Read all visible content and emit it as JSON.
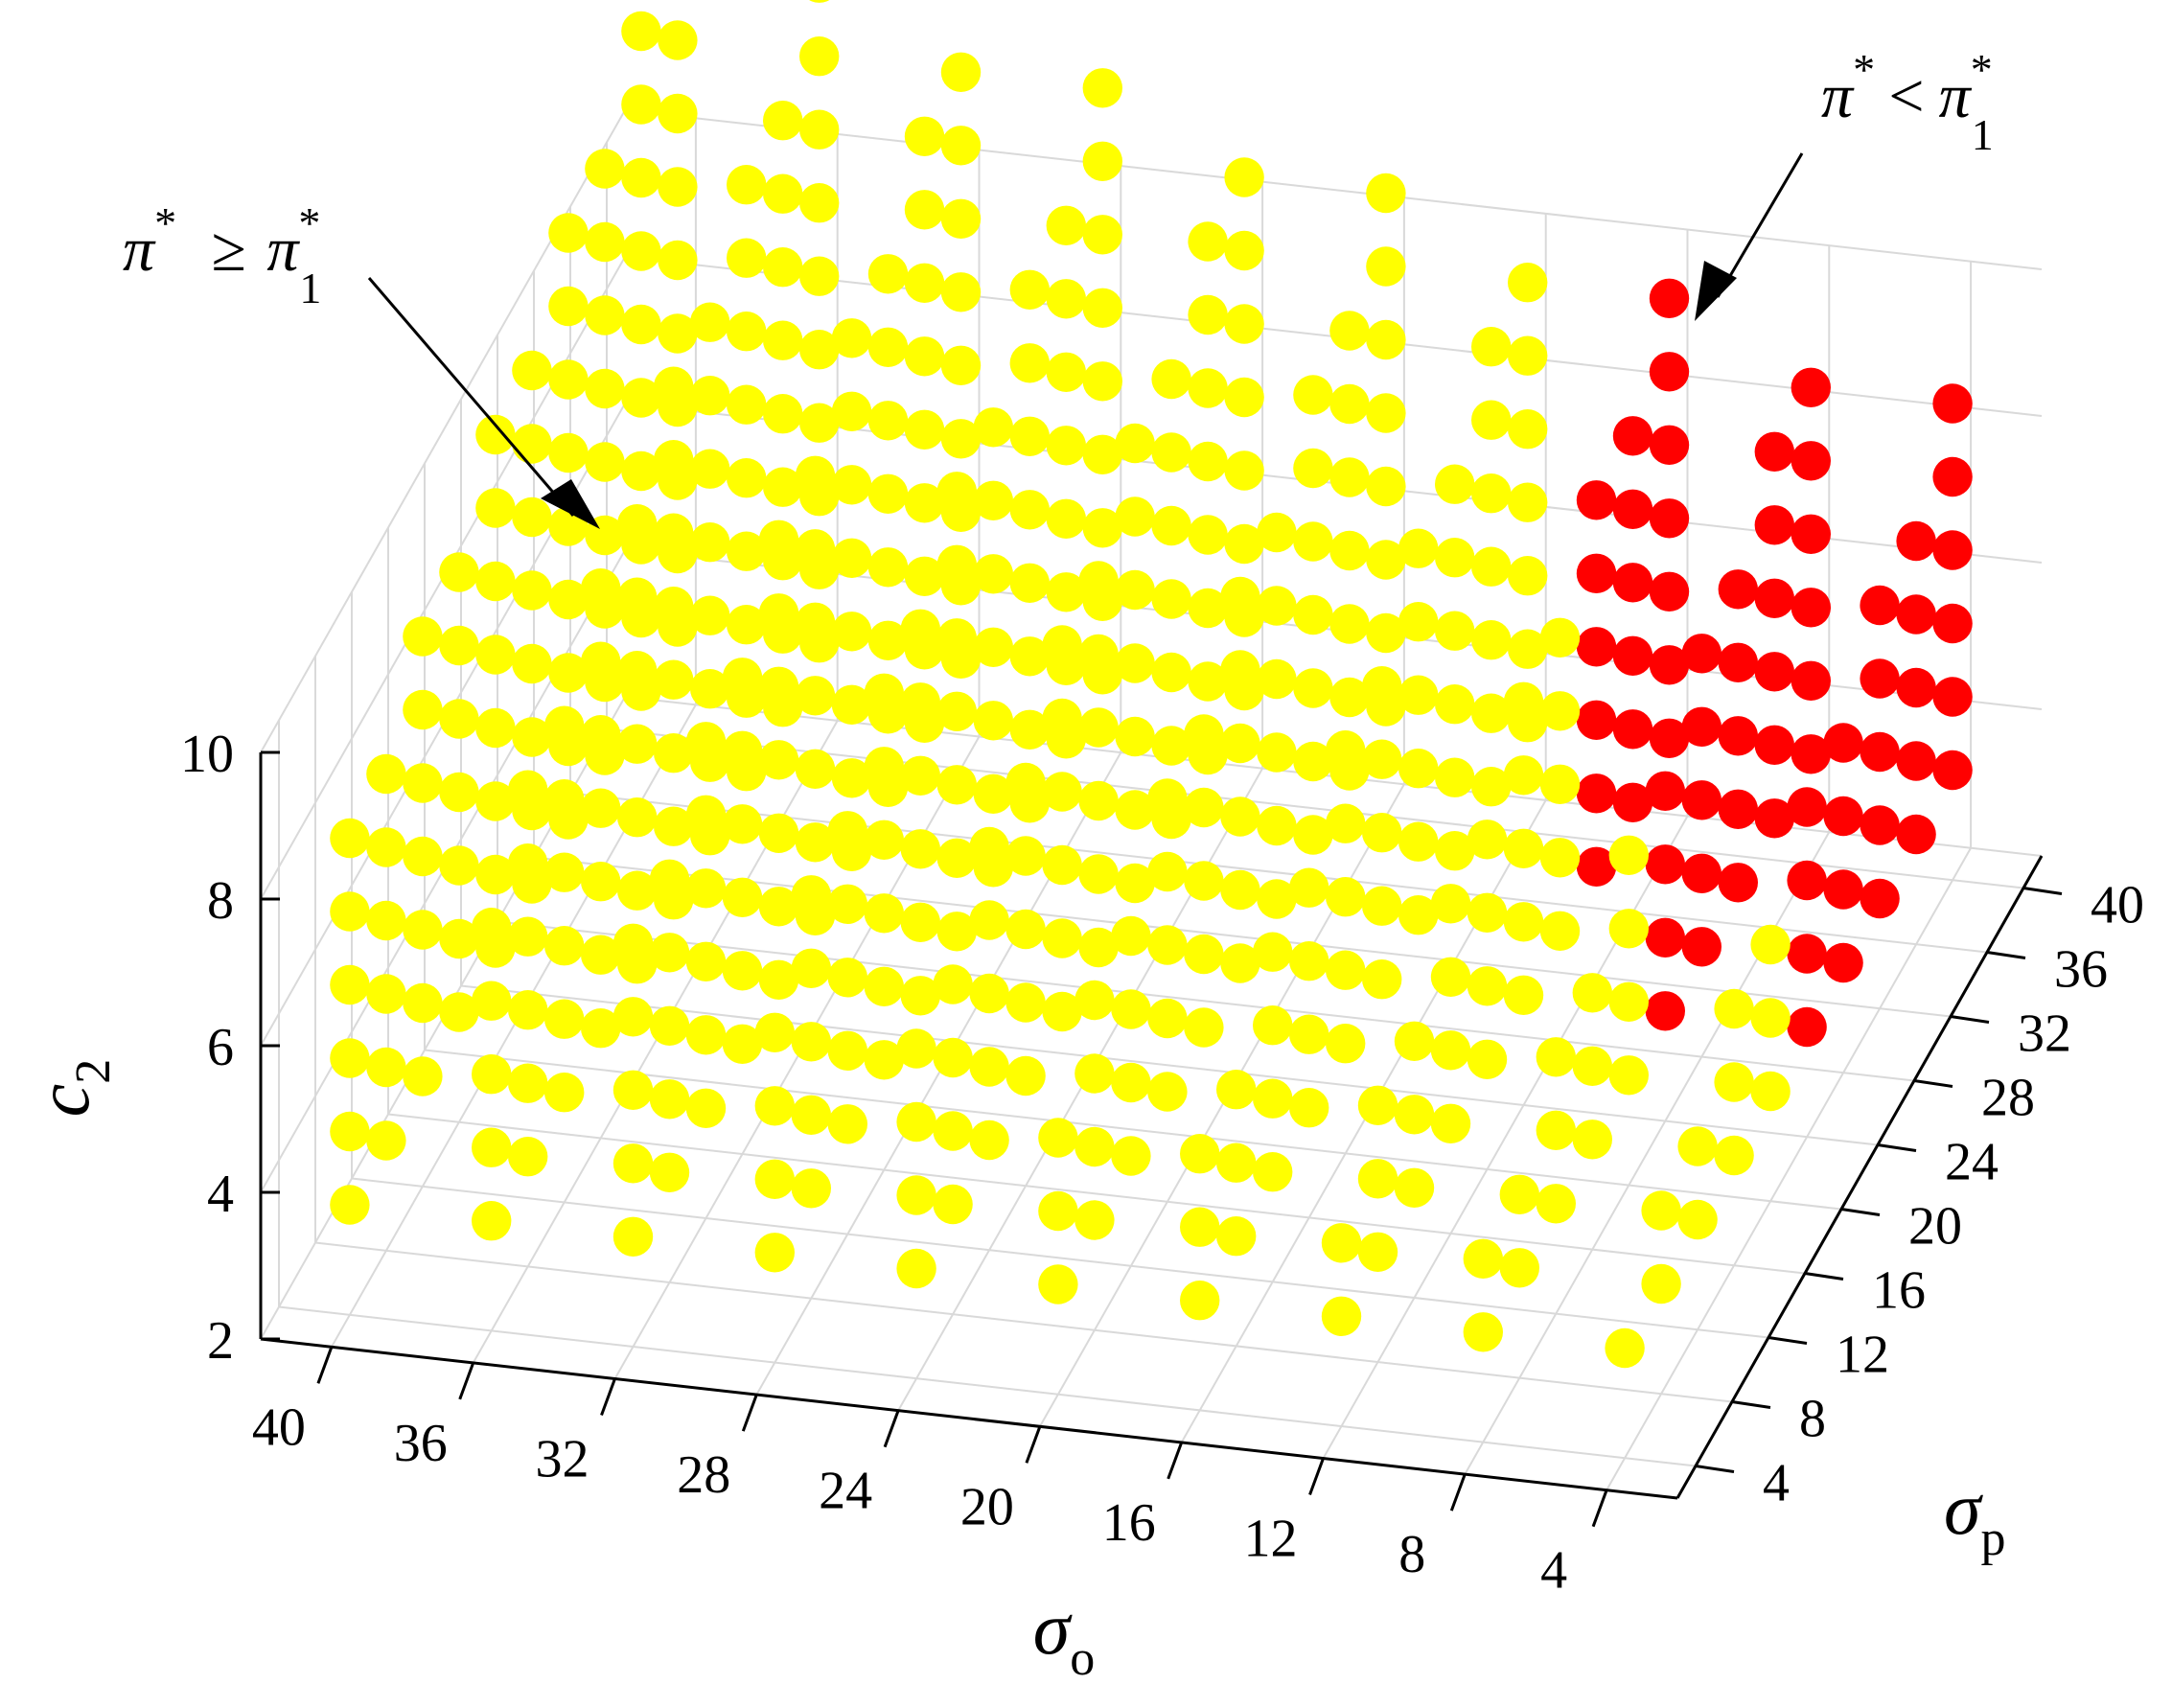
{
  "chart_data": {
    "type": "scatter3d",
    "x_axis": {
      "symbol": "σ",
      "subscript": "o",
      "ticks": [
        40,
        36,
        32,
        28,
        24,
        20,
        16,
        12,
        8,
        4
      ],
      "range": [
        2,
        42
      ]
    },
    "y_axis": {
      "symbol": "σ",
      "subscript": "p",
      "ticks": [
        4,
        8,
        12,
        16,
        20,
        24,
        28,
        32,
        36,
        40
      ],
      "range": [
        2,
        42
      ]
    },
    "z_axis": {
      "symbol": "c",
      "subscript": "2",
      "ticks": [
        2,
        4,
        6,
        8,
        10
      ],
      "range": [
        2,
        10
      ]
    },
    "grid": true,
    "sigma_o_values": [
      40,
      36,
      32,
      28,
      24,
      20,
      16,
      12,
      8,
      4
    ],
    "sigma_p_values": [
      4,
      8,
      12,
      16,
      20,
      24,
      28,
      32,
      36,
      40
    ],
    "c2_values": [
      3.5,
      4.5,
      5.5,
      6.5,
      7.5,
      8.5,
      9.5,
      10.5,
      11.5,
      12.5
    ],
    "series": [
      {
        "color": "#ffff00",
        "condition": "π* ≥ π1*"
      },
      {
        "color": "#ff0000",
        "condition": "π* < π1*"
      }
    ],
    "region_rule": "red where sigma_o <= 8 and sigma_p >= 22, or sigma_o == 12 and sigma_p >= 30",
    "annotations": [
      {
        "series_index": 0,
        "text": "π* ≥ π1*",
        "main": "π",
        "sup": "*",
        "relation": "≥",
        "main2": "π",
        "sup2": "*",
        "sub2": "1"
      },
      {
        "series_index": 1,
        "text": "π* < π1*",
        "main": "π",
        "sup": "*",
        "relation": "<",
        "main2": "π",
        "sup2": "*",
        "sub2": "1"
      }
    ]
  }
}
